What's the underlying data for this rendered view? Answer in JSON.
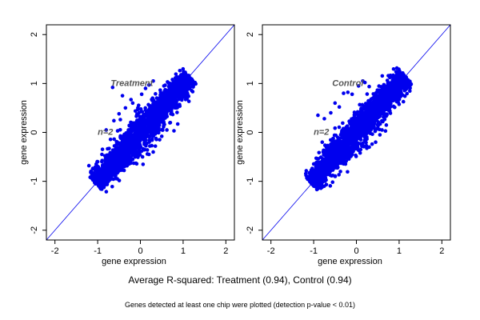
{
  "chart_data": [
    {
      "type": "scatter",
      "panel_label": "Treatment",
      "n_label": "n=2",
      "xlabel": "gene expression",
      "ylabel": "gene expression",
      "xlim": [
        -2.2,
        2.2
      ],
      "ylim": [
        -2.2,
        2.2
      ],
      "xticks": [
        "-2",
        "-1",
        "0",
        "1",
        "2"
      ],
      "yticks": [
        "-2",
        "-1",
        "0",
        "1",
        "2"
      ],
      "reference_line": "y = x",
      "point_color": "#0000ee",
      "line_color": "#0000ee",
      "grid": false,
      "cloud": {
        "xmin": -1.05,
        "xmax": 1.15,
        "spread": 0.2,
        "count": 2200
      },
      "points": [
        [
          -0.65,
          0.92
        ],
        [
          -0.42,
          0.75
        ],
        [
          -0.22,
          0.67
        ],
        [
          -0.18,
          0.6
        ],
        [
          0.03,
          0.78
        ],
        [
          0.12,
          0.9
        ],
        [
          0.2,
          0.97
        ],
        [
          0.3,
          1.05
        ],
        [
          -0.5,
          0.38
        ],
        [
          -0.62,
          0.24
        ],
        [
          -0.8,
          0.05
        ],
        [
          -0.05,
          -0.33
        ],
        [
          0.1,
          -0.35
        ],
        [
          0.3,
          -0.4
        ],
        [
          0.35,
          -0.28
        ],
        [
          0.5,
          -0.08
        ],
        [
          0.62,
          0.05
        ],
        [
          0.7,
          0.2
        ],
        [
          0.45,
          -0.15
        ],
        [
          0.2,
          -0.45
        ],
        [
          -0.3,
          -0.55
        ],
        [
          -0.55,
          -0.72
        ],
        [
          0.55,
          0.95
        ],
        [
          0.75,
          1.08
        ],
        [
          -0.9,
          -0.45
        ],
        [
          -1.0,
          -0.6
        ],
        [
          -0.35,
          0.5
        ],
        [
          0.05,
          -0.5
        ]
      ]
    },
    {
      "type": "scatter",
      "panel_label": "Control",
      "n_label": "n=2",
      "xlabel": "gene expression",
      "ylabel": "gene expression",
      "xlim": [
        -2.2,
        2.2
      ],
      "ylim": [
        -2.2,
        2.2
      ],
      "xticks": [
        "-2",
        "-1",
        "0",
        "1",
        "2"
      ],
      "yticks": [
        "-2",
        "-1",
        "0",
        "1",
        "2"
      ],
      "reference_line": "y = x",
      "point_color": "#0000ee",
      "line_color": "#0000ee",
      "grid": false,
      "cloud": {
        "xmin": -1.05,
        "xmax": 1.15,
        "spread": 0.2,
        "count": 2200
      },
      "points": [
        [
          -0.9,
          0.35
        ],
        [
          -0.75,
          0.28
        ],
        [
          -0.6,
          0.4
        ],
        [
          -0.4,
          0.52
        ],
        [
          -0.3,
          0.8
        ],
        [
          -0.2,
          0.82
        ],
        [
          -0.1,
          0.78
        ],
        [
          0.05,
          0.95
        ],
        [
          0.15,
          1.05
        ],
        [
          -0.8,
          -0.2
        ],
        [
          0.6,
          0.05
        ],
        [
          0.7,
          0.15
        ],
        [
          0.45,
          -0.2
        ],
        [
          0.3,
          -0.3
        ],
        [
          0.1,
          -0.35
        ],
        [
          -0.1,
          -0.45
        ],
        [
          0.55,
          -0.05
        ],
        [
          0.2,
          1.02
        ],
        [
          -0.5,
          0.6
        ],
        [
          0.8,
          0.95
        ],
        [
          -0.95,
          -0.75
        ],
        [
          0.65,
          0.45
        ]
      ]
    }
  ],
  "captions": {
    "line1": "Average R-squared: Treatment (0.94), Control (0.94)",
    "line2": "Genes detected at least one chip were plotted (detection p-value < 0.01)"
  }
}
